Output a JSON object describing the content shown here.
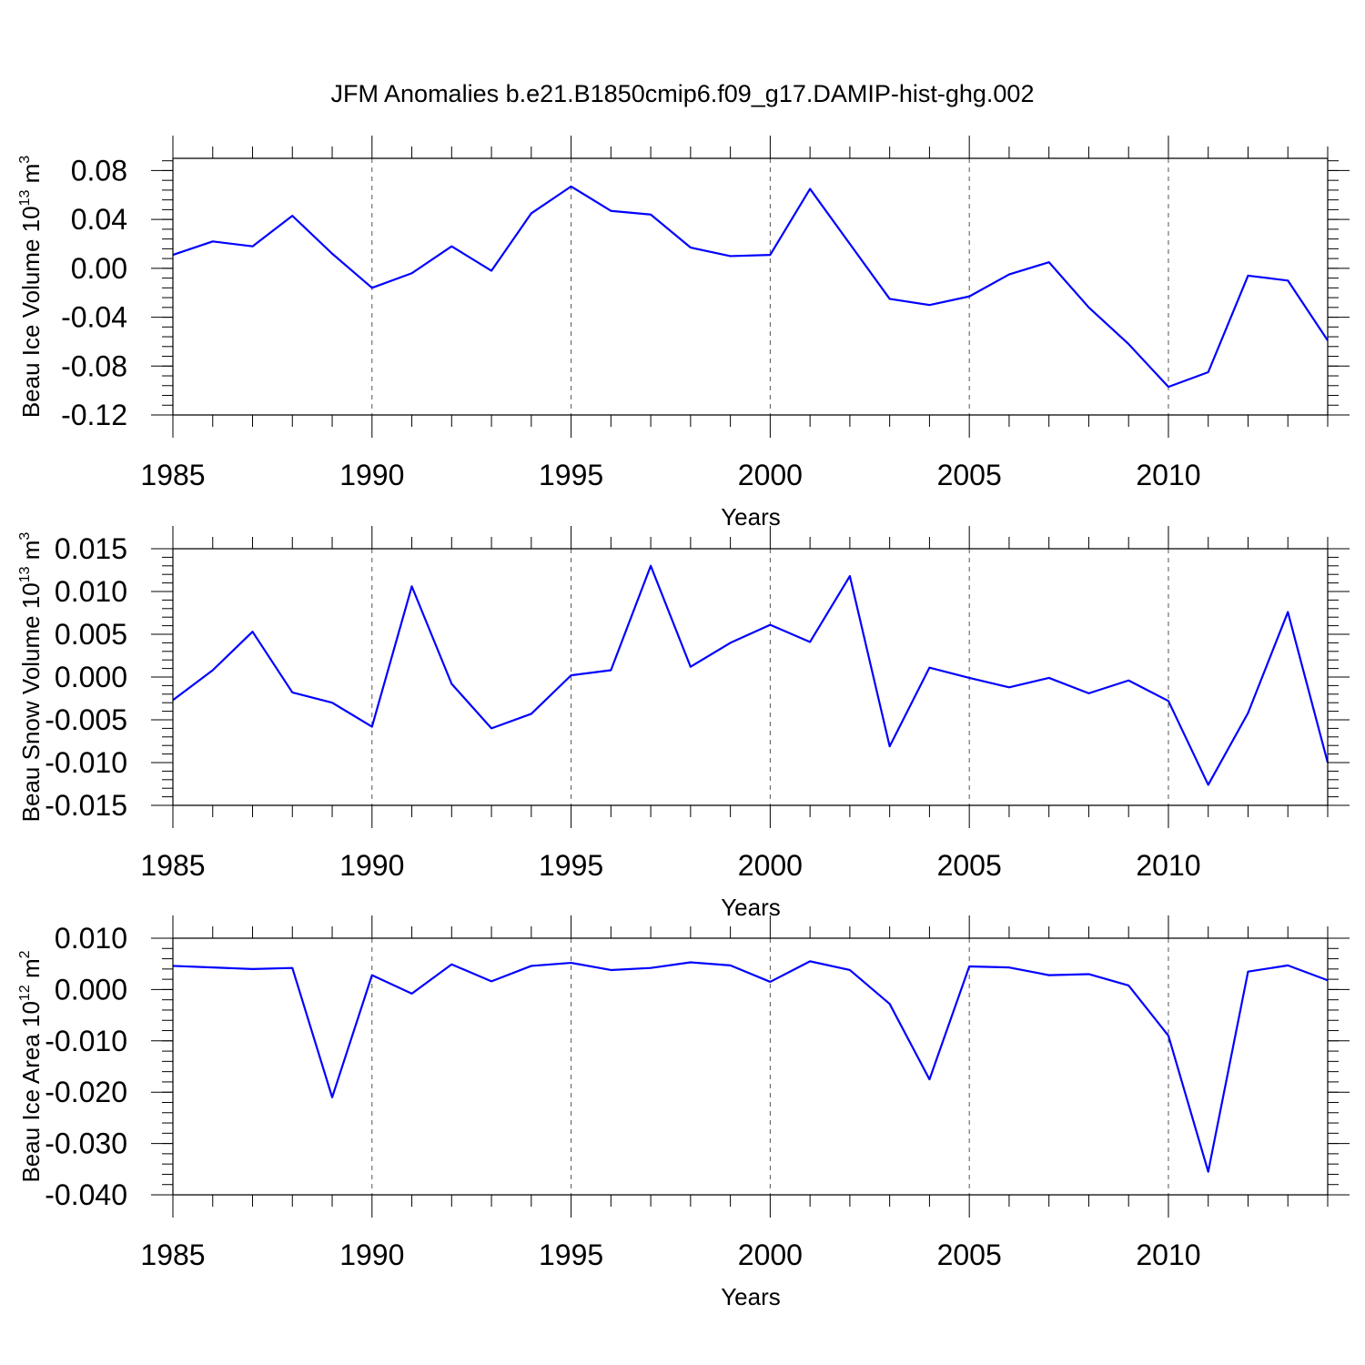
{
  "figure": {
    "title": "JFM Anomalies b.e21.B1850cmip6.f09_g17.DAMIP-hist-ghg.002"
  },
  "style": {
    "line_color": "#0000ff",
    "axis_color": "#000000",
    "grid_color": "#555555",
    "background": "#ffffff"
  },
  "chart_data": [
    {
      "type": "line",
      "title": "",
      "xlabel": "Years",
      "ylabel": "Beau Ice Volume 10",
      "ylabel_exp": "13",
      "ylabel_unit": " m",
      "ylabel_unit_exp": "3",
      "xlim": [
        1985,
        2014
      ],
      "ylim": [
        -0.12,
        0.09
      ],
      "x_ticks": [
        1985,
        1990,
        1995,
        2000,
        2005,
        2010
      ],
      "x_tick_labels": [
        "1985",
        "1990",
        "1995",
        "2000",
        "2005",
        "2010"
      ],
      "y_ticks": [
        -0.12,
        -0.08,
        -0.04,
        0.0,
        0.04,
        0.08
      ],
      "y_tick_labels": [
        "-0.12",
        "-0.08",
        "-0.04",
        "0.00",
        "0.04",
        "0.08"
      ],
      "y_minor_step": 0.008,
      "x_grid": "dashed vertical at major ticks",
      "x": [
        1985,
        1986,
        1987,
        1988,
        1989,
        1990,
        1991,
        1992,
        1993,
        1994,
        1995,
        1996,
        1997,
        1998,
        1999,
        2000,
        2001,
        2002,
        2003,
        2004,
        2005,
        2006,
        2007,
        2008,
        2009,
        2010,
        2011,
        2012,
        2013,
        2014
      ],
      "series": [
        {
          "values": [
            0.011,
            0.022,
            0.018,
            0.043,
            0.012,
            -0.016,
            -0.004,
            0.018,
            -0.002,
            0.045,
            0.067,
            0.047,
            0.044,
            0.017,
            0.01,
            0.011,
            0.065,
            0.02,
            -0.025,
            -0.03,
            -0.023,
            -0.005,
            0.005,
            -0.032,
            -0.062,
            -0.097,
            -0.085,
            -0.006,
            -0.01,
            -0.059
          ]
        }
      ]
    },
    {
      "type": "line",
      "title": "",
      "xlabel": "Years",
      "ylabel": "Beau Snow Volume 10",
      "ylabel_exp": "13",
      "ylabel_unit": " m",
      "ylabel_unit_exp": "3",
      "xlim": [
        1985,
        2014
      ],
      "ylim": [
        -0.015,
        0.015
      ],
      "x_ticks": [
        1985,
        1990,
        1995,
        2000,
        2005,
        2010
      ],
      "x_tick_labels": [
        "1985",
        "1990",
        "1995",
        "2000",
        "2005",
        "2010"
      ],
      "y_ticks": [
        -0.015,
        -0.01,
        -0.005,
        0.0,
        0.005,
        0.01,
        0.015
      ],
      "y_tick_labels": [
        "-0.015",
        "-0.010",
        "-0.005",
        "0.000",
        "0.005",
        "0.010",
        "0.015"
      ],
      "y_minor_step": 0.001,
      "x_grid": "dashed vertical at major ticks",
      "x": [
        1985,
        1986,
        1987,
        1988,
        1989,
        1990,
        1991,
        1992,
        1993,
        1994,
        1995,
        1996,
        1997,
        1998,
        1999,
        2000,
        2001,
        2002,
        2003,
        2004,
        2005,
        2006,
        2007,
        2008,
        2009,
        2010,
        2011,
        2012,
        2013,
        2014
      ],
      "series": [
        {
          "values": [
            -0.0027,
            0.0008,
            0.0053,
            -0.0018,
            -0.003,
            -0.0058,
            0.0106,
            -0.0008,
            -0.006,
            -0.0043,
            0.0002,
            0.0008,
            0.013,
            0.0012,
            0.004,
            0.0061,
            0.0041,
            0.0118,
            -0.0081,
            0.0011,
            -0.0001,
            -0.0012,
            -0.0001,
            -0.0019,
            -0.0004,
            -0.0028,
            -0.0126,
            -0.0042,
            0.0076,
            -0.01
          ]
        }
      ]
    },
    {
      "type": "line",
      "title": "",
      "xlabel": "Years",
      "ylabel": "Beau Ice Area 10",
      "ylabel_exp": "12",
      "ylabel_unit": " m",
      "ylabel_unit_exp": "2",
      "xlim": [
        1985,
        2014
      ],
      "ylim": [
        -0.04,
        0.01
      ],
      "x_ticks": [
        1985,
        1990,
        1995,
        2000,
        2005,
        2010
      ],
      "x_tick_labels": [
        "1985",
        "1990",
        "1995",
        "2000",
        "2005",
        "2010"
      ],
      "y_ticks": [
        -0.04,
        -0.03,
        -0.02,
        -0.01,
        0.0,
        0.01
      ],
      "y_tick_labels": [
        "-0.040",
        "-0.030",
        "-0.020",
        "-0.010",
        "0.000",
        "0.010"
      ],
      "y_minor_step": 0.002,
      "x_grid": "dashed vertical at major ticks",
      "x": [
        1985,
        1986,
        1987,
        1988,
        1989,
        1990,
        1991,
        1992,
        1993,
        1994,
        1995,
        1996,
        1997,
        1998,
        1999,
        2000,
        2001,
        2002,
        2003,
        2004,
        2005,
        2006,
        2007,
        2008,
        2009,
        2010,
        2011,
        2012,
        2013,
        2014
      ],
      "series": [
        {
          "values": [
            0.0046,
            0.0043,
            0.004,
            0.0042,
            -0.021,
            0.0028,
            -0.0008,
            0.0049,
            0.0016,
            0.0046,
            0.0052,
            0.0038,
            0.0042,
            0.0053,
            0.0047,
            0.0015,
            0.0055,
            0.0038,
            -0.0028,
            -0.0175,
            0.0045,
            0.0043,
            0.0028,
            0.003,
            0.0008,
            -0.009,
            -0.0355,
            0.0035,
            0.0047,
            0.0018
          ]
        }
      ]
    }
  ]
}
